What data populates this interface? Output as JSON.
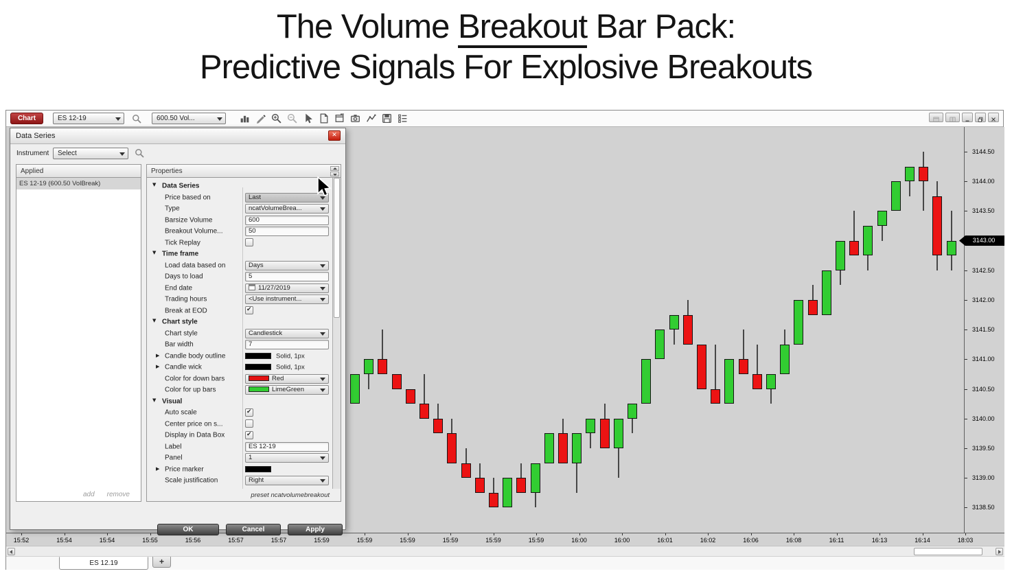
{
  "title": {
    "line1_pre": "The Volume ",
    "line1_underlined": "Breakout",
    "line1_post": " Bar Pack:",
    "line2": "Predictive Signals For Explosive Breakouts"
  },
  "toolbar": {
    "chart_button": "Chart",
    "instrument_combo": "ES 12-19",
    "interval_combo": "600.50 Vol...",
    "icons": [
      "bar-chart-icon",
      "draw-icon",
      "zoom-in-icon",
      "zoom-out-icon",
      "cursor-icon",
      "report-icon",
      "data-box-icon",
      "snapshot-icon",
      "indicator-icon",
      "save-icon",
      "list-icon"
    ],
    "window_buttons": [
      "layout-icon",
      "layout2-icon",
      "minimize-icon",
      "restore-icon",
      "close-icon"
    ]
  },
  "dialog": {
    "title": "Data Series",
    "close_icon": "close-icon",
    "instrument_label": "Instrument",
    "instrument_value": "Select",
    "applied": {
      "header": "Applied",
      "items": [
        "ES 12-19 (600.50 VolBreak)"
      ],
      "add_label": "add",
      "remove_label": "remove"
    },
    "properties": {
      "header": "Properties",
      "preset_label": "preset ncatvolumebreakout",
      "rows": [
        {
          "kind": "group",
          "label": "Data Series"
        },
        {
          "kind": "combo",
          "label": "Price based on",
          "value": "Last",
          "highlight": true
        },
        {
          "kind": "combo",
          "label": "Type",
          "value": "ncatVolumeBrea..."
        },
        {
          "kind": "input",
          "label": "Barsize Volume",
          "value": "600"
        },
        {
          "kind": "input",
          "label": "Breakout Volume...",
          "value": "50"
        },
        {
          "kind": "check",
          "label": "Tick Replay",
          "checked": false
        },
        {
          "kind": "group",
          "label": "Time frame"
        },
        {
          "kind": "combo",
          "label": "Load data based on",
          "value": "Days"
        },
        {
          "kind": "input",
          "label": "Days to load",
          "value": "5"
        },
        {
          "kind": "combo",
          "label": "End date",
          "value": "11/27/2019",
          "calendar": true
        },
        {
          "kind": "combo",
          "label": "Trading hours",
          "value": "<Use instrument..."
        },
        {
          "kind": "check",
          "label": "Break at EOD",
          "checked": true
        },
        {
          "kind": "group",
          "label": "Chart style"
        },
        {
          "kind": "combo",
          "label": "Chart style",
          "value": "Candlestick"
        },
        {
          "kind": "input",
          "label": "Bar width",
          "value": "7"
        },
        {
          "kind": "swatch",
          "label": "Candle body outline",
          "value": "Solid, 1px",
          "swatch": "#000000",
          "expand": true
        },
        {
          "kind": "swatch",
          "label": "Candle wick",
          "value": "Solid, 1px",
          "swatch": "#000000",
          "expand": true
        },
        {
          "kind": "combo",
          "label": "Color for down bars",
          "value": "Red",
          "swatch": "#e31212"
        },
        {
          "kind": "combo",
          "label": "Color for up bars",
          "value": "LimeGreen",
          "swatch": "#32cd32"
        },
        {
          "kind": "group",
          "label": "Visual"
        },
        {
          "kind": "check",
          "label": "Auto scale",
          "checked": true
        },
        {
          "kind": "check",
          "label": "Center price on s...",
          "checked": false
        },
        {
          "kind": "check",
          "label": "Display in Data Box",
          "checked": true
        },
        {
          "kind": "input",
          "label": "Label",
          "value": "ES 12-19"
        },
        {
          "kind": "combo",
          "label": "Panel",
          "value": "1"
        },
        {
          "kind": "swatch",
          "label": "Price marker",
          "value": "",
          "swatch": "#000000",
          "expand": true
        },
        {
          "kind": "combo",
          "label": "Scale justification",
          "value": "Right"
        }
      ]
    },
    "buttons": [
      "OK",
      "Cancel",
      "Apply"
    ]
  },
  "chart_data": {
    "type": "candlestick",
    "instrument": "ES 12-19",
    "interval": "600.50 VolBreak",
    "price_axis": {
      "min": 3138.5,
      "max": 3144.5,
      "ticks": [
        "3144.50",
        "3144.00",
        "3143.50",
        "3143.00",
        "3142.50",
        "3142.00",
        "3141.50",
        "3141.00",
        "3140.50",
        "3140.00",
        "3139.50",
        "3139.00",
        "3138.50"
      ],
      "current_price": "3143.00"
    },
    "time_labels": [
      "15:52",
      "15:54",
      "15:54",
      "15:55",
      "15:56",
      "15:57",
      "15:57",
      "15:59",
      "15:59",
      "15:59",
      "15:59",
      "15:59",
      "15:59",
      "16:00",
      "16:00",
      "16:01",
      "16:02",
      "16:06",
      "16:08",
      "16:11",
      "16:13",
      "16:14",
      "18:03"
    ],
    "colors": {
      "up": "#32cd32",
      "down": "#ec1313",
      "wick": "#474747",
      "background": "#d2d2d2"
    },
    "candles": [
      {
        "o": 3140.25,
        "h": 3140.75,
        "l": 3140.25,
        "c": 3140.75
      },
      {
        "o": 3140.75,
        "h": 3141.0,
        "l": 3140.5,
        "c": 3141.0
      },
      {
        "o": 3141.0,
        "h": 3141.5,
        "l": 3140.75,
        "c": 3140.75
      },
      {
        "o": 3140.75,
        "h": 3140.75,
        "l": 3140.5,
        "c": 3140.5
      },
      {
        "o": 3140.5,
        "h": 3140.5,
        "l": 3140.25,
        "c": 3140.25
      },
      {
        "o": 3140.25,
        "h": 3140.75,
        "l": 3140.0,
        "c": 3140.0
      },
      {
        "o": 3140.0,
        "h": 3140.25,
        "l": 3139.75,
        "c": 3139.75
      },
      {
        "o": 3139.75,
        "h": 3140.0,
        "l": 3139.25,
        "c": 3139.25
      },
      {
        "o": 3139.25,
        "h": 3139.5,
        "l": 3139.0,
        "c": 3139.0
      },
      {
        "o": 3139.0,
        "h": 3139.25,
        "l": 3138.75,
        "c": 3138.75
      },
      {
        "o": 3138.75,
        "h": 3139.0,
        "l": 3138.5,
        "c": 3138.5
      },
      {
        "o": 3138.5,
        "h": 3139.0,
        "l": 3138.5,
        "c": 3139.0
      },
      {
        "o": 3139.0,
        "h": 3139.25,
        "l": 3138.75,
        "c": 3138.75
      },
      {
        "o": 3138.75,
        "h": 3139.25,
        "l": 3138.5,
        "c": 3139.25
      },
      {
        "o": 3139.25,
        "h": 3139.75,
        "l": 3139.25,
        "c": 3139.75
      },
      {
        "o": 3139.75,
        "h": 3140.0,
        "l": 3139.25,
        "c": 3139.25
      },
      {
        "o": 3139.25,
        "h": 3139.75,
        "l": 3138.75,
        "c": 3139.75
      },
      {
        "o": 3139.75,
        "h": 3140.0,
        "l": 3139.5,
        "c": 3140.0
      },
      {
        "o": 3140.0,
        "h": 3140.25,
        "l": 3139.5,
        "c": 3139.5
      },
      {
        "o": 3139.5,
        "h": 3140.0,
        "l": 3139.0,
        "c": 3140.0
      },
      {
        "o": 3140.0,
        "h": 3140.25,
        "l": 3139.75,
        "c": 3140.25
      },
      {
        "o": 3140.25,
        "h": 3141.0,
        "l": 3140.25,
        "c": 3141.0
      },
      {
        "o": 3141.0,
        "h": 3141.5,
        "l": 3141.0,
        "c": 3141.5
      },
      {
        "o": 3141.5,
        "h": 3141.75,
        "l": 3141.25,
        "c": 3141.75
      },
      {
        "o": 3141.75,
        "h": 3142.0,
        "l": 3141.25,
        "c": 3141.25
      },
      {
        "o": 3141.25,
        "h": 3141.25,
        "l": 3140.5,
        "c": 3140.5
      },
      {
        "o": 3140.5,
        "h": 3141.25,
        "l": 3140.25,
        "c": 3140.25
      },
      {
        "o": 3140.25,
        "h": 3141.0,
        "l": 3140.25,
        "c": 3141.0
      },
      {
        "o": 3141.0,
        "h": 3141.5,
        "l": 3140.75,
        "c": 3140.75
      },
      {
        "o": 3140.75,
        "h": 3141.25,
        "l": 3140.5,
        "c": 3140.5
      },
      {
        "o": 3140.5,
        "h": 3140.75,
        "l": 3140.25,
        "c": 3140.75
      },
      {
        "o": 3140.75,
        "h": 3141.5,
        "l": 3140.75,
        "c": 3141.25
      },
      {
        "o": 3141.25,
        "h": 3142.0,
        "l": 3141.25,
        "c": 3142.0
      },
      {
        "o": 3142.0,
        "h": 3142.25,
        "l": 3141.75,
        "c": 3141.75
      },
      {
        "o": 3141.75,
        "h": 3142.5,
        "l": 3141.75,
        "c": 3142.5
      },
      {
        "o": 3142.5,
        "h": 3143.0,
        "l": 3142.25,
        "c": 3143.0
      },
      {
        "o": 3143.0,
        "h": 3143.5,
        "l": 3142.75,
        "c": 3142.75
      },
      {
        "o": 3142.75,
        "h": 3143.25,
        "l": 3142.5,
        "c": 3143.25
      },
      {
        "o": 3143.25,
        "h": 3143.5,
        "l": 3143.0,
        "c": 3143.5
      },
      {
        "o": 3143.5,
        "h": 3144.0,
        "l": 3143.5,
        "c": 3144.0
      },
      {
        "o": 3144.0,
        "h": 3144.25,
        "l": 3143.75,
        "c": 3144.25
      },
      {
        "o": 3144.25,
        "h": 3144.5,
        "l": 3143.5,
        "c": 3144.0
      },
      {
        "o": 3143.75,
        "h": 3144.0,
        "l": 3142.5,
        "c": 3142.75
      },
      {
        "o": 3142.75,
        "h": 3143.5,
        "l": 3142.5,
        "c": 3143.0
      }
    ]
  },
  "tabbar": {
    "tab": "ES 12.19",
    "add_tab": "+"
  }
}
